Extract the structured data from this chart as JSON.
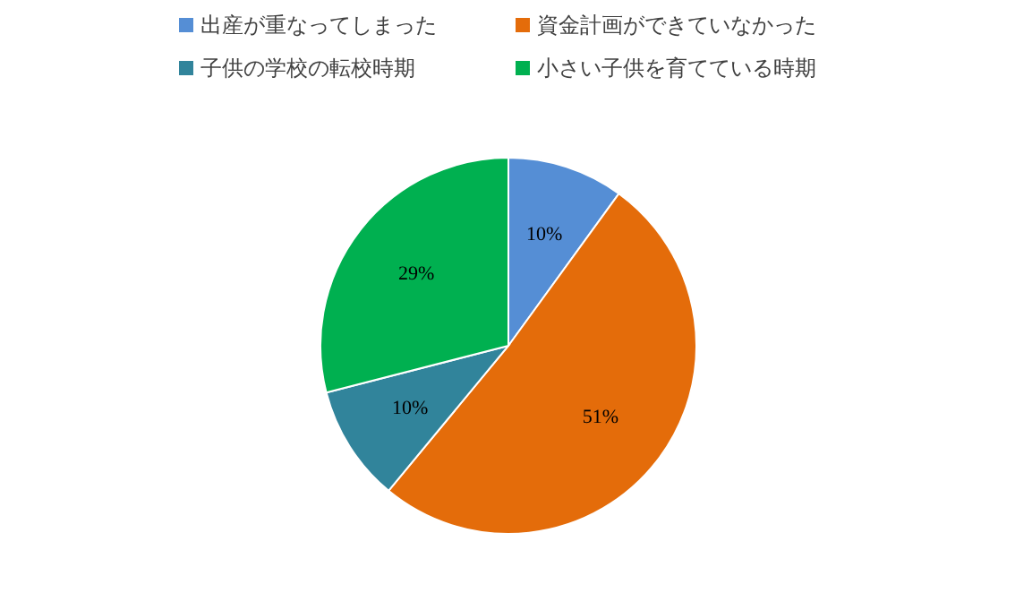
{
  "chart_data": {
    "type": "pie",
    "categories": [
      "出産が重なってしまった",
      "資金計画ができていなかった",
      "子供の学校の転校時期",
      "小さい子供を育てている時期"
    ],
    "values": [
      10,
      51,
      10,
      29
    ],
    "colors": [
      "#558ed5",
      "#e46c0a",
      "#31849b",
      "#00b050"
    ],
    "value_labels": [
      "10%",
      "51%",
      "10%",
      "29%"
    ],
    "legend": "top"
  }
}
